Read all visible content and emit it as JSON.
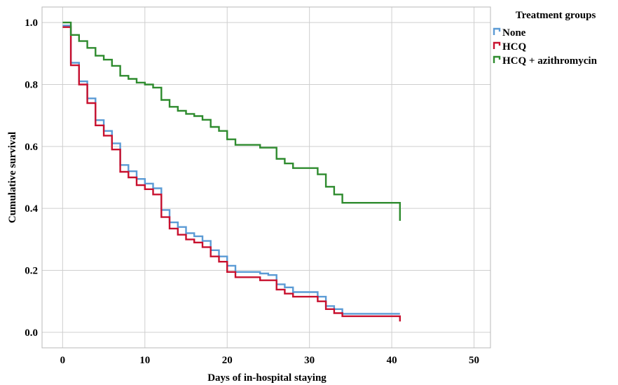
{
  "chart_data": {
    "type": "line",
    "step": true,
    "title": "",
    "xlabel": "Days of in-hospital staying",
    "ylabel": "Cumulative survival",
    "xlim": [
      -2.5,
      52
    ],
    "ylim": [
      -0.05,
      1.05
    ],
    "xticks": [
      0,
      10,
      20,
      30,
      40,
      50
    ],
    "yticks": [
      0.0,
      0.2,
      0.4,
      0.6,
      0.8,
      1.0
    ],
    "xtick_labels": [
      "0",
      "10",
      "20",
      "30",
      "40",
      "50"
    ],
    "ytick_labels": [
      "0.0",
      "0.2",
      "0.4",
      "0.6",
      "0.8",
      "1.0"
    ],
    "grid": true,
    "legend": {
      "title": "Treatment groups",
      "position": "top-right-outside",
      "entries": [
        "None",
        "HCQ",
        "HCQ + azithromycin"
      ]
    },
    "series": [
      {
        "name": "None",
        "color": "#5b9bd5",
        "x": [
          0,
          1,
          2,
          3,
          4,
          5,
          6,
          7,
          8,
          9,
          10,
          11,
          12,
          13,
          14,
          15,
          16,
          17,
          18,
          19,
          20,
          21,
          22,
          23,
          24,
          25,
          26,
          27,
          28,
          29,
          30,
          31,
          32,
          33,
          34,
          35,
          36,
          37,
          38,
          39,
          40,
          41
        ],
        "y": [
          0.99,
          0.87,
          0.81,
          0.755,
          0.685,
          0.65,
          0.61,
          0.54,
          0.52,
          0.495,
          0.48,
          0.465,
          0.395,
          0.355,
          0.34,
          0.32,
          0.31,
          0.295,
          0.265,
          0.245,
          0.215,
          0.195,
          0.195,
          0.195,
          0.19,
          0.185,
          0.155,
          0.145,
          0.13,
          0.13,
          0.13,
          0.115,
          0.085,
          0.075,
          0.06,
          0.06,
          0.06,
          0.06,
          0.06,
          0.06,
          0.06,
          0.06
        ]
      },
      {
        "name": "HCQ",
        "color": "#c8102e",
        "x": [
          0,
          1,
          2,
          3,
          4,
          5,
          6,
          7,
          8,
          9,
          10,
          11,
          12,
          13,
          14,
          15,
          16,
          17,
          18,
          19,
          20,
          21,
          22,
          23,
          24,
          25,
          26,
          27,
          28,
          29,
          30,
          31,
          32,
          33,
          34,
          35,
          36,
          37,
          38,
          39,
          40,
          41
        ],
        "y": [
          0.985,
          0.862,
          0.8,
          0.74,
          0.668,
          0.635,
          0.59,
          0.518,
          0.5,
          0.475,
          0.462,
          0.445,
          0.372,
          0.335,
          0.315,
          0.3,
          0.29,
          0.275,
          0.245,
          0.228,
          0.195,
          0.178,
          0.178,
          0.178,
          0.168,
          0.168,
          0.138,
          0.125,
          0.115,
          0.115,
          0.115,
          0.1,
          0.075,
          0.062,
          0.052,
          0.052,
          0.052,
          0.052,
          0.052,
          0.052,
          0.052,
          0.035
        ]
      },
      {
        "name": "HCQ + azithromycin",
        "color": "#2e8b2e",
        "x": [
          0,
          1,
          2,
          3,
          4,
          5,
          6,
          7,
          8,
          9,
          10,
          11,
          12,
          13,
          14,
          15,
          16,
          17,
          18,
          19,
          20,
          21,
          22,
          23,
          24,
          25,
          26,
          27,
          28,
          29,
          30,
          31,
          32,
          33,
          34,
          35,
          36,
          37,
          38,
          39,
          40,
          41
        ],
        "y": [
          1.0,
          0.96,
          0.94,
          0.918,
          0.893,
          0.88,
          0.86,
          0.828,
          0.818,
          0.806,
          0.8,
          0.79,
          0.75,
          0.728,
          0.715,
          0.705,
          0.698,
          0.686,
          0.663,
          0.65,
          0.623,
          0.605,
          0.605,
          0.605,
          0.596,
          0.596,
          0.56,
          0.545,
          0.53,
          0.53,
          0.53,
          0.51,
          0.47,
          0.445,
          0.418,
          0.418,
          0.418,
          0.418,
          0.418,
          0.418,
          0.418,
          0.36
        ]
      }
    ]
  }
}
